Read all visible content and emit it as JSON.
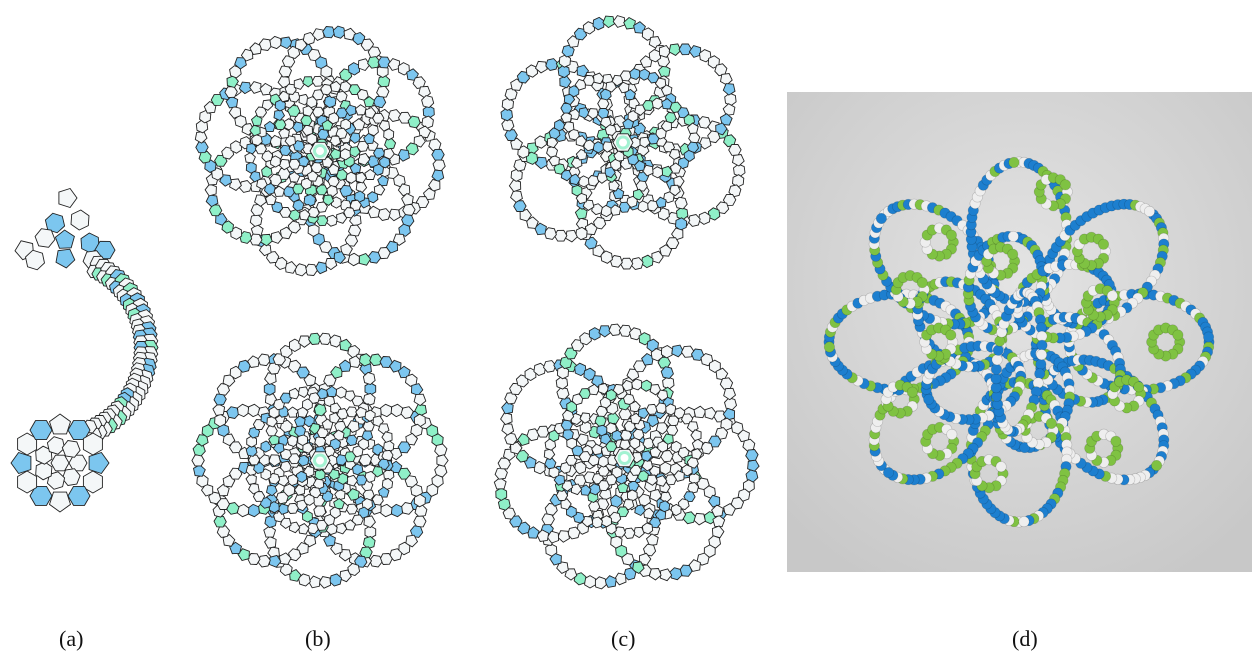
{
  "figure": {
    "captions": {
      "a": "(a)",
      "b": "(b)",
      "c": "(c)",
      "d": "(d)"
    },
    "colors": {
      "blue_cell": "#7cc6ef",
      "green_cell": "#8ff0c8",
      "white_cell": "#f4f7f8",
      "edge": "#222222",
      "bead_blue": "#1d7fcf",
      "bead_green": "#7fc242",
      "bead_white": "#eeeeee",
      "photo_bg": "#d6d6d6"
    },
    "panels": [
      {
        "id": "a",
        "kind": "single-arm-graph",
        "icon": "arm-structure-icon"
      },
      {
        "id": "b",
        "kind": "line-drawing-views",
        "icon": "toroidal-network-icon"
      },
      {
        "id": "c",
        "kind": "line-drawing-views",
        "icon": "toroidal-network-icon"
      },
      {
        "id": "d",
        "kind": "bead-model-photo",
        "icon": "bead-model-icon"
      }
    ]
  }
}
